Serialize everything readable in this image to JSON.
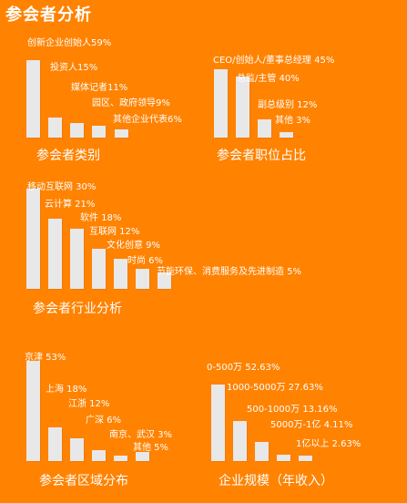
{
  "page_title": "参会者分析",
  "colors": {
    "background": "#FF8200",
    "bar": "#E8E8E8",
    "text": "#FFFFFF"
  },
  "chart_data": [
    {
      "type": "bar",
      "title": "参会者类别",
      "categories": [
        "创新企业创始人",
        "投资人",
        "媒体记者",
        "园区、政府领导",
        "其他企业代表"
      ],
      "values": [
        59,
        15,
        11,
        9,
        6
      ],
      "labels": [
        "创新企业创始人59%",
        "投资人15%",
        "媒体记者11%",
        "园区、政府领导9%",
        "其他企业代表6%"
      ]
    },
    {
      "type": "bar",
      "title": "参会者职位占比",
      "categories": [
        "CEO/创始人/董事总经理",
        "总监/主管",
        "副总级别",
        "其他"
      ],
      "values": [
        45,
        40,
        12,
        3
      ],
      "labels": [
        "CEO/创始人/董事总经理  45%",
        "总监/主管 40%",
        "副总级别 12%",
        "其他 3%"
      ]
    },
    {
      "type": "bar",
      "title": "参会者行业分析",
      "categories": [
        "移动互联网",
        "云计算",
        "软件",
        "互联网",
        "文化创意",
        "时尚",
        "节能环保、消费服务及先进制造"
      ],
      "values": [
        30,
        21,
        18,
        12,
        9,
        6,
        5
      ],
      "labels": [
        "移动互联网 30%",
        "云计算 21%",
        "软件 18%",
        "互联网 12%",
        "文化创意 9%",
        "时尚 6%",
        "节能环保、消费服务及先进制造 5%"
      ]
    },
    {
      "type": "bar",
      "title": "参会者区域分布",
      "categories": [
        "京津",
        "上海",
        "江浙",
        "广深",
        "南京、武汉",
        "其他"
      ],
      "values": [
        53,
        18,
        12,
        6,
        3,
        5
      ],
      "labels": [
        "京津 53%",
        "上海 18%",
        "江浙 12%",
        "广深 6%",
        "南京、武汉 3%",
        "其他 5%"
      ]
    },
    {
      "type": "bar",
      "title": "企业规模（年收入）",
      "categories": [
        "0-500万",
        "1000-5000万",
        "500-1000万",
        "5000万-1亿",
        "1亿以上"
      ],
      "values": [
        52.63,
        27.63,
        13.16,
        4.11,
        2.63
      ],
      "labels": [
        "0-500万 52.63%",
        "1000-5000万 27.63%",
        "500-1000万 13.16%",
        "5000万-1亿 4.11%",
        "1亿以上 2.63%"
      ]
    }
  ]
}
